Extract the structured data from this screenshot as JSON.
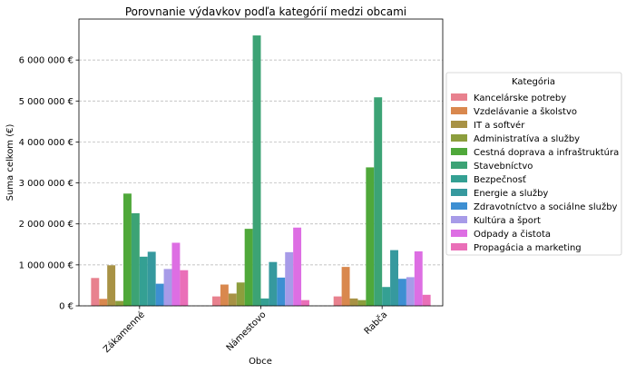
{
  "chart_data": {
    "type": "bar",
    "title": "Porovnanie výdavkov podľa kategórií medzi obcami",
    "xlabel": "Obce",
    "ylabel": "Suma celkom (€)",
    "ylim": [
      0,
      7000000
    ],
    "yticks": [
      0,
      1000000,
      2000000,
      3000000,
      4000000,
      5000000,
      6000000
    ],
    "ytick_labels": [
      "0 €",
      "1 000 000 €",
      "2 000 000 €",
      "3 000 000 €",
      "4 000 000 €",
      "5 000 000 €",
      "6 000 000 €"
    ],
    "grid": "horizontal dashed",
    "legend_placement": "right outside",
    "categories": [
      "Zákamenné",
      "Námestovo",
      "Rabča"
    ],
    "legend_title": "Kategória",
    "series": [
      {
        "name": "Kancelárske potreby",
        "color": "#e8818e",
        "values": [
          680000,
          230000,
          230000
        ]
      },
      {
        "name": "Vzdelávanie a školstvo",
        "color": "#d9884e",
        "values": [
          170000,
          520000,
          950000
        ]
      },
      {
        "name": "IT a softvér",
        "color": "#a89245",
        "values": [
          990000,
          300000,
          180000
        ]
      },
      {
        "name": "Administratíva a služby",
        "color": "#8c9e3d",
        "values": [
          120000,
          570000,
          140000
        ]
      },
      {
        "name": "Cestná doprava a infraštruktúra",
        "color": "#4fa83a",
        "values": [
          2740000,
          1880000,
          3380000
        ]
      },
      {
        "name": "Stavebníctvo",
        "color": "#3ca375",
        "values": [
          2260000,
          6600000,
          5090000
        ]
      },
      {
        "name": "Bezpečnosť",
        "color": "#34a093",
        "values": [
          1200000,
          180000,
          460000
        ]
      },
      {
        "name": "Energie a služby",
        "color": "#36999e",
        "values": [
          1320000,
          1070000,
          1360000
        ]
      },
      {
        "name": "Zdravotníctvo a sociálne služby",
        "color": "#3d8fd2",
        "values": [
          540000,
          690000,
          660000
        ]
      },
      {
        "name": "Kultúra a šport",
        "color": "#a79be8",
        "values": [
          900000,
          1310000,
          700000
        ]
      },
      {
        "name": "Odpady a čistota",
        "color": "#dd6ee3",
        "values": [
          1540000,
          1910000,
          1330000
        ]
      },
      {
        "name": "Propagácia a marketing",
        "color": "#ea6fb8",
        "values": [
          870000,
          140000,
          270000
        ]
      }
    ]
  }
}
